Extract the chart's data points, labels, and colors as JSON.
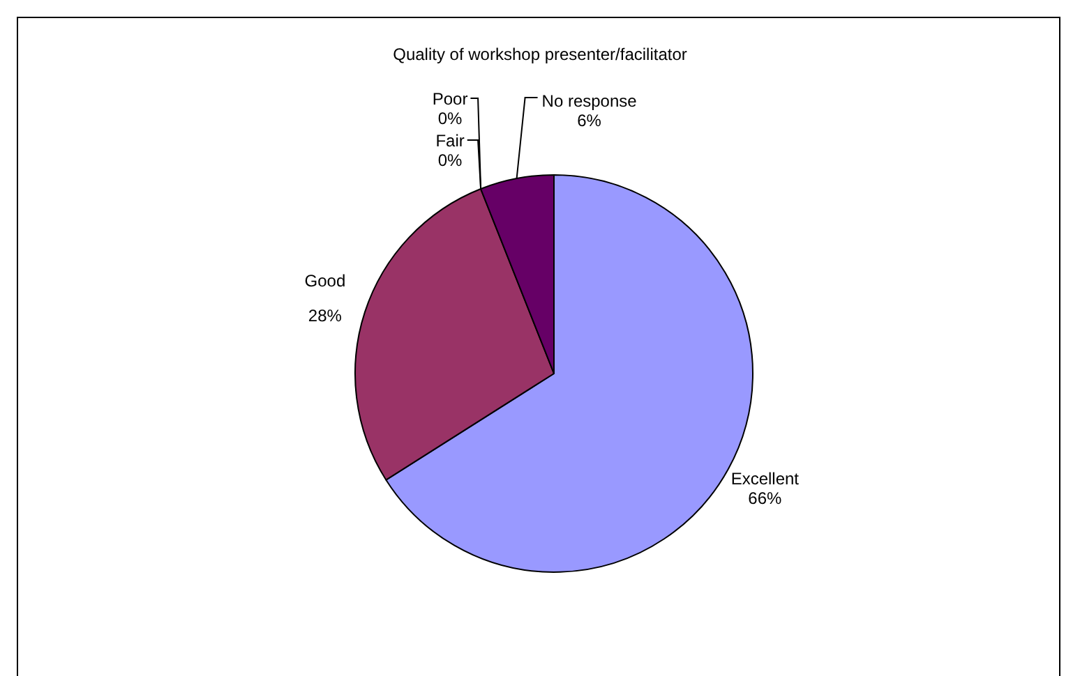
{
  "chart_data": {
    "type": "pie",
    "title": "Quality of workshop presenter/facilitator",
    "categories": [
      "Excellent",
      "Good",
      "Fair",
      "Poor",
      "No response"
    ],
    "values": [
      66,
      28,
      0,
      0,
      6
    ],
    "colors": [
      "#9999ff",
      "#993366",
      "#ffffcc",
      "#ccffff",
      "#660066"
    ],
    "value_labels": [
      "66%",
      "28%",
      "0%",
      "0%",
      "6%"
    ],
    "legend": false
  }
}
